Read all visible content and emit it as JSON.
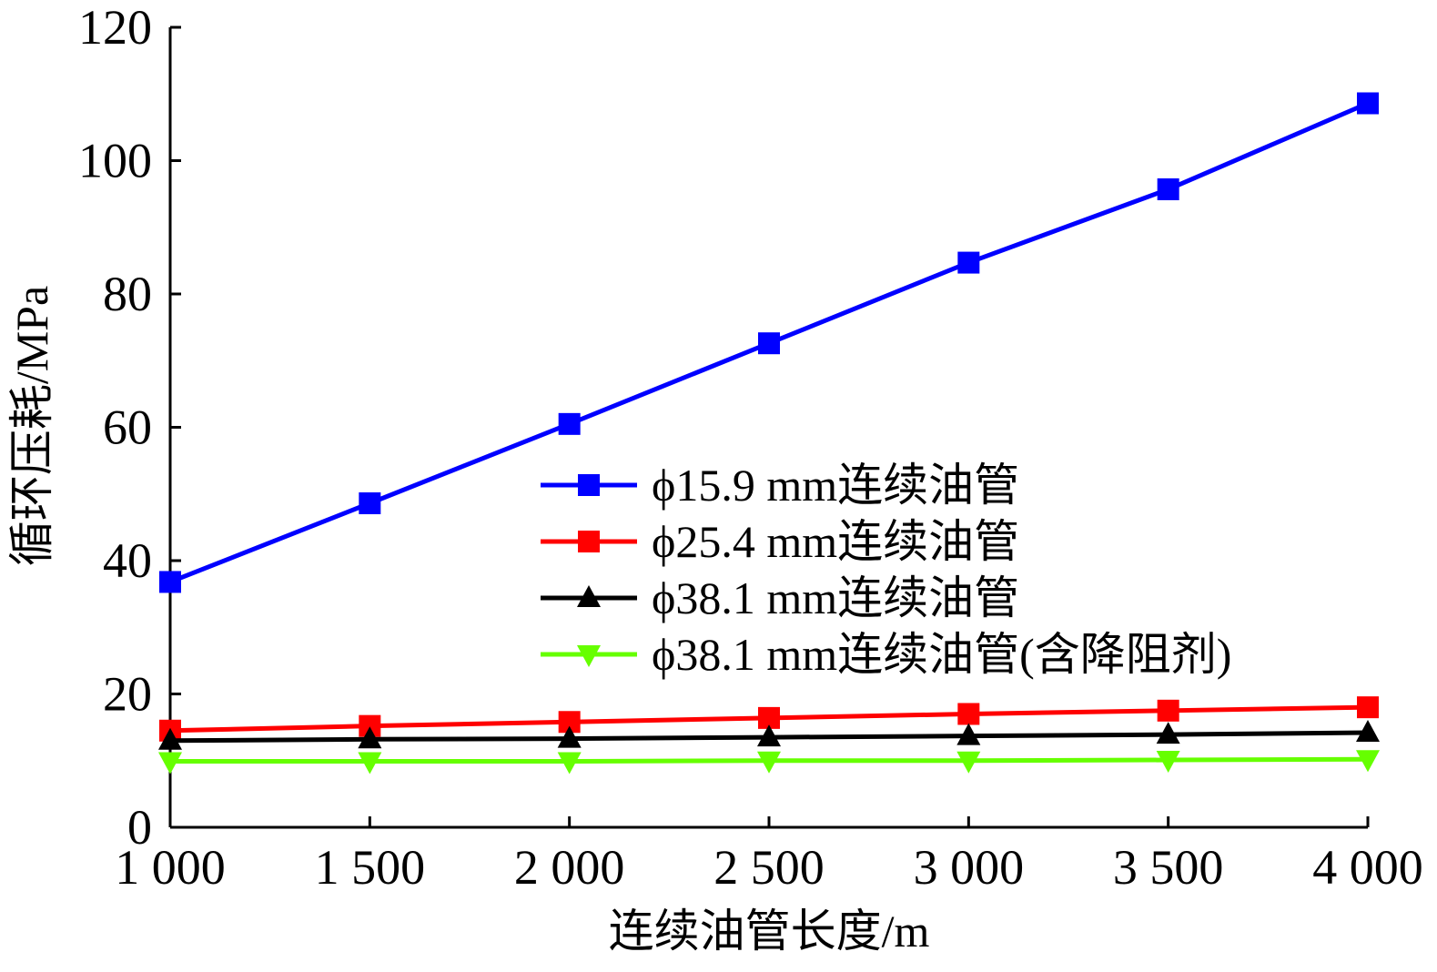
{
  "chart_data": {
    "type": "line",
    "xlabel": "连续油管长度/m",
    "ylabel": "循环压耗/MPa",
    "x": [
      1000,
      1500,
      2000,
      2500,
      3000,
      3500,
      4000
    ],
    "x_tick_labels": [
      "1 000",
      "1 500",
      "2 000",
      "2 500",
      "3 000",
      "3 500",
      "4 000"
    ],
    "y_ticks": [
      0,
      20,
      40,
      60,
      80,
      100,
      120
    ],
    "y_tick_labels": [
      "0",
      "20",
      "40",
      "60",
      "80",
      "100",
      "120"
    ],
    "xlim": [
      1000,
      4000
    ],
    "ylim": [
      0,
      120
    ],
    "grid": false,
    "legend_position": "center",
    "series": [
      {
        "name": "ϕ15.9 mm连续油管",
        "color": "#0000ff",
        "marker": "square",
        "values": [
          36.8,
          48.6,
          60.5,
          72.6,
          84.7,
          95.7,
          108.6
        ]
      },
      {
        "name": "ϕ25.4 mm连续油管",
        "color": "#ff0000",
        "marker": "square",
        "values": [
          14.5,
          15.2,
          15.8,
          16.4,
          17.0,
          17.5,
          18.0
        ]
      },
      {
        "name": "ϕ38.1 mm连续油管",
        "color": "#000000",
        "marker": "triangle-up",
        "values": [
          13.0,
          13.2,
          13.3,
          13.5,
          13.7,
          13.9,
          14.2
        ]
      },
      {
        "name": "ϕ38.1 mm连续油管(含降阻剂)",
        "color": "#66ff00",
        "marker": "triangle-down",
        "values": [
          9.9,
          9.9,
          9.9,
          10.0,
          10.0,
          10.1,
          10.2
        ]
      }
    ]
  }
}
